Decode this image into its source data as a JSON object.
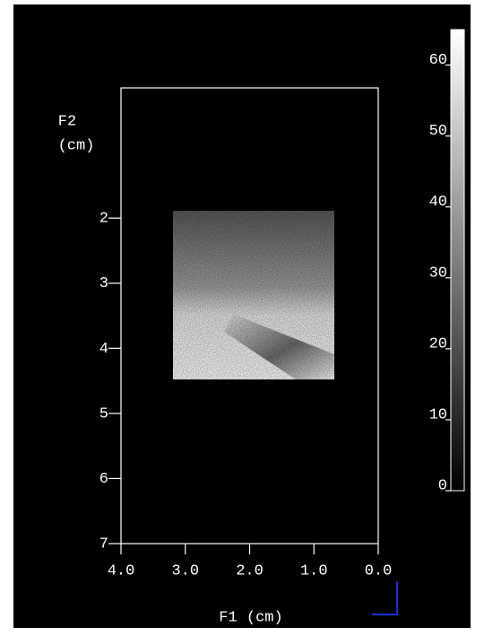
{
  "chart_data": {
    "type": "image",
    "xlabel": "F1 (cm)",
    "ylabel": [
      "F2",
      "(cm)"
    ],
    "xlim": [
      4,
      0
    ],
    "xticks": [
      {
        "value": 4,
        "label": "4.0"
      },
      {
        "value": 3,
        "label": "3.0"
      },
      {
        "value": 2,
        "label": "2.0"
      },
      {
        "value": 1,
        "label": "1.0"
      },
      {
        "value": 0,
        "label": "0.0"
      }
    ],
    "ylim": [
      0,
      7
    ],
    "yticks": [
      2,
      3,
      4,
      5,
      6,
      7
    ],
    "clim": [
      0,
      65
    ],
    "cticks": [
      0,
      10,
      20,
      30,
      40,
      50,
      60
    ],
    "colormap": [
      "#000000",
      "#ffffff"
    ]
  }
}
